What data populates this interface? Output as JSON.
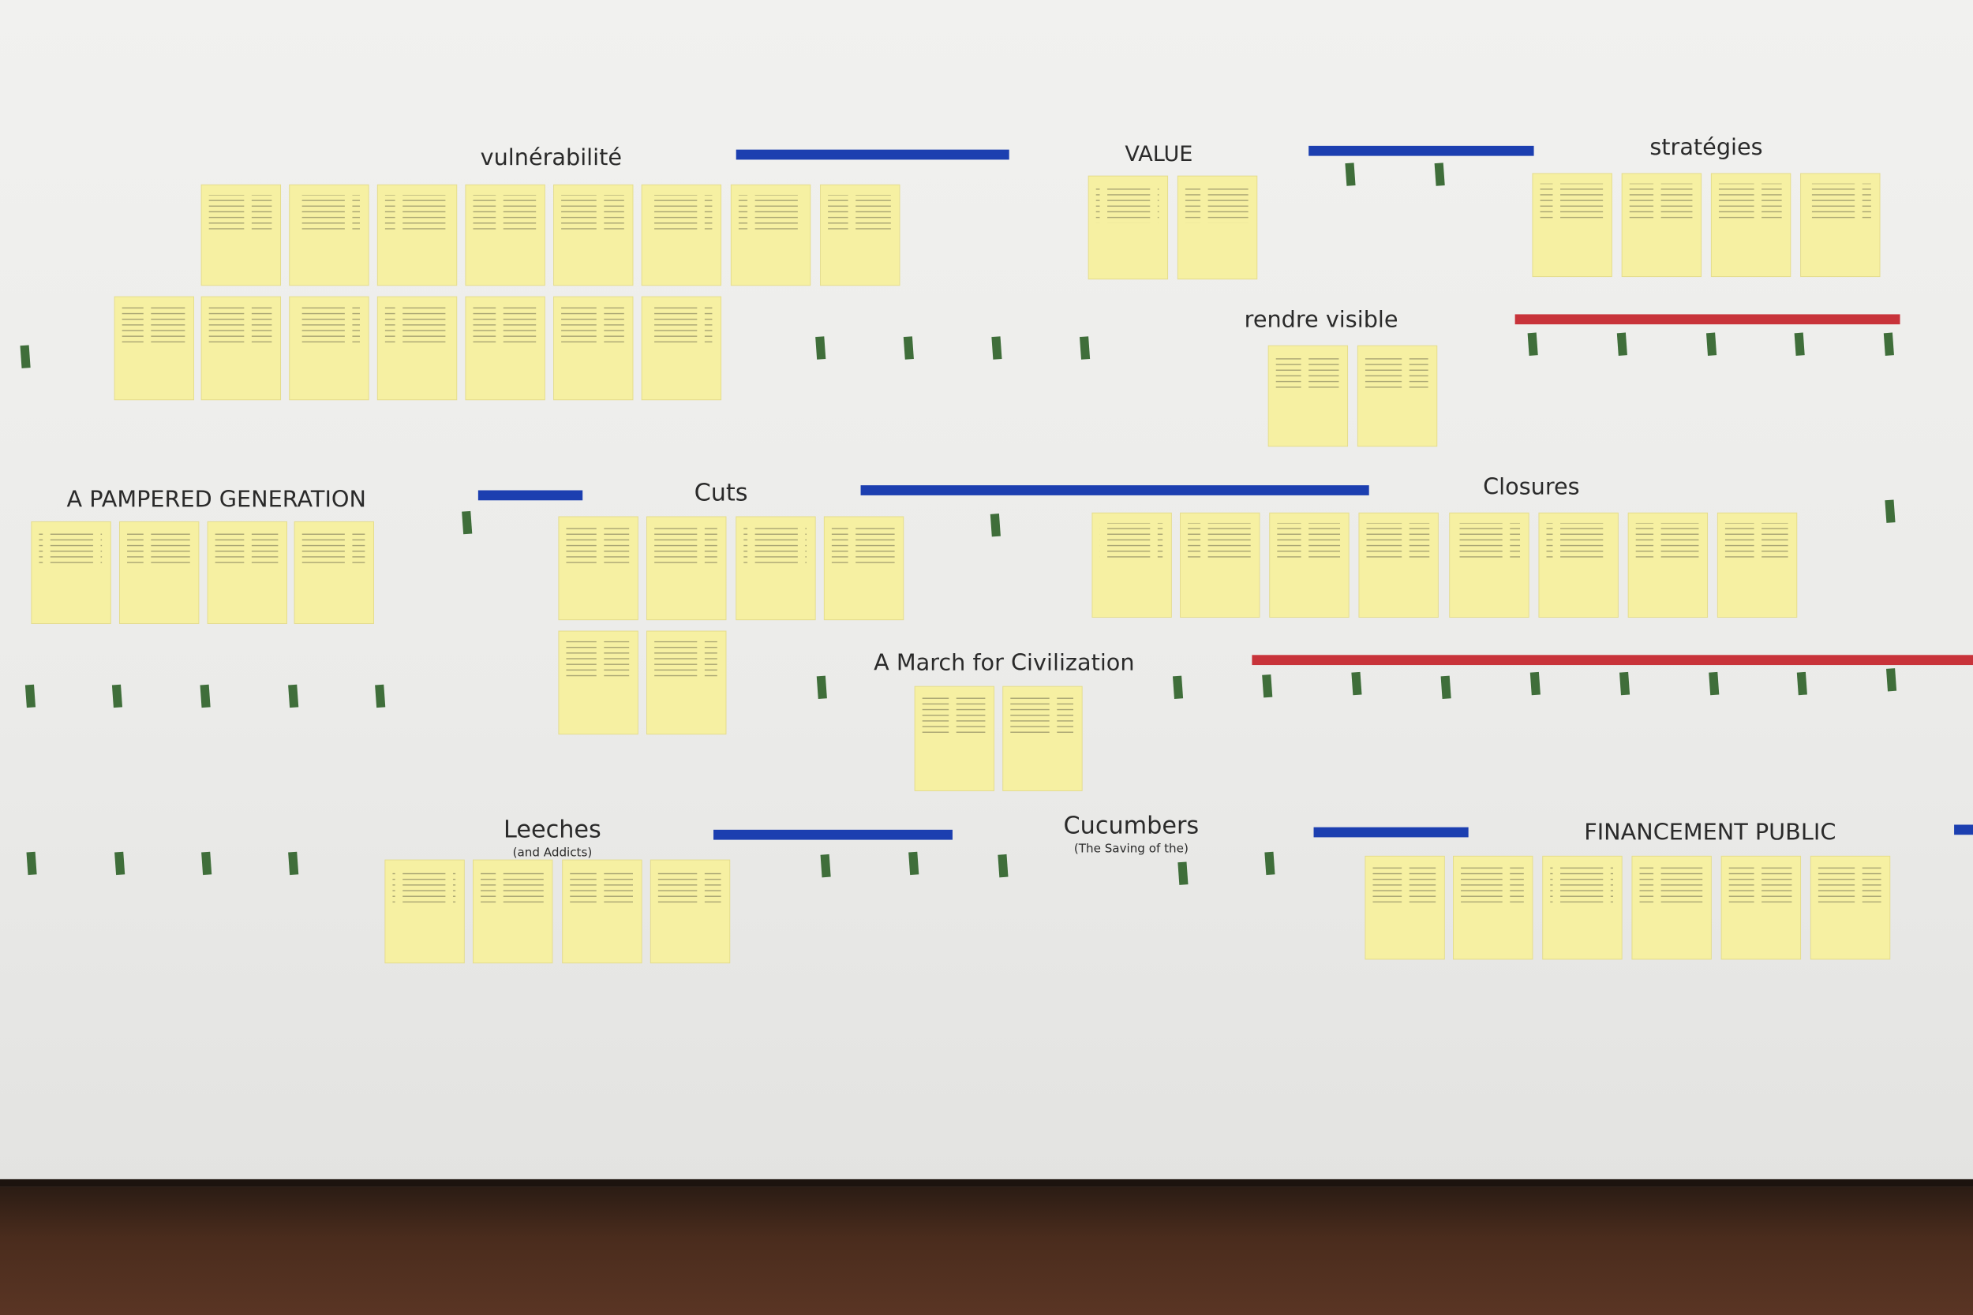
{
  "sections": [
    {
      "title": "vulnérabilité"
    },
    {
      "title": "VALUE"
    },
    {
      "title": "stratégies"
    },
    {
      "title": "rendre visible"
    },
    {
      "title": "A PAMPERED GENERATION"
    },
    {
      "title": "Cuts"
    },
    {
      "title": "Closures"
    },
    {
      "title": "A March for Civilization"
    },
    {
      "title": "Leeches",
      "subtitle": "(and Addicts)"
    },
    {
      "title": "Cucumbers",
      "subtitle": "(The Saving of the)"
    },
    {
      "title": "FINANCEMENT PUBLIC"
    }
  ]
}
